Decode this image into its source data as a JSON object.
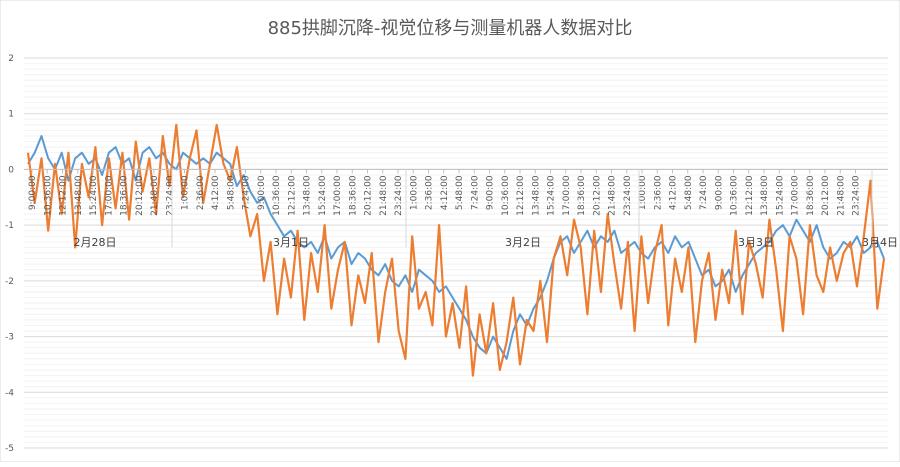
{
  "chart_data": {
    "type": "line",
    "title": "885拱脚沉降-视觉位移与测量机器人数据对比",
    "xlabel": "",
    "ylabel": "",
    "ylim": [
      -5,
      2
    ],
    "y_ticks": [
      "2",
      "1",
      "0",
      "-1",
      "-2",
      "-3",
      "-4",
      "-5"
    ],
    "y_tick_values": [
      2,
      1,
      0,
      -1,
      -2,
      -3,
      -4,
      -5
    ],
    "grid": true,
    "legend": "none",
    "date_labels": [
      "2月28日",
      "3月1日",
      "3月2日",
      "3月3日",
      "3月4日"
    ],
    "time_labels": [
      "9:00:00",
      "10:36:00",
      "12:12:00",
      "13:48:00",
      "15:24:00",
      "17:00:00",
      "18:36:00",
      "20:12:00",
      "21:48:00",
      "23:24:00",
      "1:00:00",
      "2:36:00",
      "4:12:00",
      "5:48:00",
      "7:24:00",
      "9:00:00",
      "10:36:00",
      "12:12:00",
      "13:48:00",
      "15:24:00",
      "17:00:00",
      "18:36:00",
      "20:12:00",
      "21:48:00",
      "23:24:00",
      "1:00:00",
      "2:36:00",
      "4:12:00",
      "5:48:00",
      "7:24:00",
      "9:00:00",
      "10:36:00",
      "12:12:00",
      "13:48:00",
      "15:24:00",
      "17:00:00",
      "18:36:00",
      "20:12:00",
      "21:48:00",
      "23:24:00",
      "1:00:00",
      "2:36:00",
      "4:12:00",
      "5:48:00",
      "7:24:00",
      "9:00:00",
      "10:36:00",
      "12:12:00",
      "13:48:00",
      "15:24:00",
      "17:00:00",
      "18:36:00",
      "20:12:00",
      "21:48:00",
      "23:24:00"
    ],
    "series": [
      {
        "color": "#5B9BD5",
        "values": [
          0.1,
          0.3,
          0.6,
          0.2,
          0.0,
          0.3,
          -0.2,
          0.2,
          0.3,
          0.1,
          0.2,
          -0.1,
          0.3,
          0.4,
          0.1,
          0.2,
          -0.2,
          0.3,
          0.4,
          0.2,
          0.3,
          0.1,
          0.0,
          0.3,
          0.2,
          0.1,
          0.2,
          0.1,
          0.3,
          0.2,
          0.1,
          -0.3,
          -0.1,
          -0.4,
          -0.6,
          -0.5,
          -0.8,
          -1.0,
          -1.2,
          -1.1,
          -1.3,
          -1.4,
          -1.3,
          -1.5,
          -1.2,
          -1.6,
          -1.4,
          -1.3,
          -1.7,
          -1.5,
          -1.6,
          -1.8,
          -1.9,
          -1.7,
          -2.0,
          -2.1,
          -1.9,
          -2.2,
          -1.8,
          -1.9,
          -2.0,
          -2.2,
          -2.1,
          -2.3,
          -2.5,
          -2.7,
          -3.0,
          -3.2,
          -3.3,
          -3.0,
          -3.2,
          -3.4,
          -2.9,
          -2.6,
          -2.8,
          -2.5,
          -2.3,
          -2.0,
          -1.6,
          -1.3,
          -1.2,
          -1.5,
          -1.3,
          -1.1,
          -1.4,
          -1.2,
          -1.3,
          -1.1,
          -1.5,
          -1.4,
          -1.3,
          -1.5,
          -1.6,
          -1.4,
          -1.3,
          -1.5,
          -1.2,
          -1.4,
          -1.3,
          -1.6,
          -1.9,
          -1.8,
          -2.1,
          -2.0,
          -1.8,
          -2.2,
          -1.9,
          -1.7,
          -1.5,
          -1.4,
          -1.3,
          -1.1,
          -1.0,
          -1.2,
          -0.9,
          -1.1,
          -1.3,
          -1.0,
          -1.4,
          -1.6,
          -1.5,
          -1.3,
          -1.4,
          -1.2,
          -1.5,
          -1.4,
          -1.3,
          -1.6
        ]
      },
      {
        "color": "#ED7D31",
        "values": [
          0.3,
          -0.6,
          0.2,
          -1.1,
          0.1,
          -0.8,
          0.3,
          -1.4,
          0.1,
          -0.5,
          0.4,
          -1.0,
          0.2,
          -0.7,
          0.3,
          -0.9,
          0.5,
          -0.4,
          0.2,
          -0.8,
          0.6,
          -0.3,
          0.8,
          -0.5,
          0.2,
          0.7,
          -0.6,
          0.1,
          0.8,
          0.1,
          -0.2,
          0.4,
          -0.5,
          -1.2,
          -0.8,
          -2.0,
          -1.3,
          -2.6,
          -1.6,
          -2.3,
          -1.1,
          -2.7,
          -1.5,
          -2.2,
          -1.0,
          -2.5,
          -1.8,
          -1.3,
          -2.8,
          -1.9,
          -2.4,
          -1.5,
          -3.1,
          -2.2,
          -1.6,
          -2.9,
          -3.4,
          -1.2,
          -2.5,
          -2.2,
          -2.8,
          -1.0,
          -3.0,
          -2.4,
          -3.2,
          -2.1,
          -3.7,
          -2.6,
          -3.3,
          -2.4,
          -3.6,
          -3.1,
          -2.3,
          -3.5,
          -2.7,
          -2.9,
          -2.0,
          -3.1,
          -1.6,
          -1.2,
          -1.9,
          -0.9,
          -1.4,
          -2.6,
          -1.1,
          -2.2,
          -0.8,
          -1.7,
          -2.5,
          -1.3,
          -2.9,
          -1.2,
          -2.4,
          -1.5,
          -1.0,
          -2.8,
          -1.6,
          -2.2,
          -1.4,
          -3.1,
          -2.0,
          -1.5,
          -2.7,
          -1.8,
          -2.4,
          -1.1,
          -2.6,
          -1.3,
          -1.7,
          -2.3,
          -0.9,
          -1.8,
          -2.9,
          -1.2,
          -1.6,
          -2.6,
          -1.0,
          -1.9,
          -2.2,
          -1.4,
          -2.0,
          -1.5,
          -1.3,
          -2.1,
          -1.2,
          -0.2,
          -2.5,
          -1.6
        ]
      }
    ]
  }
}
